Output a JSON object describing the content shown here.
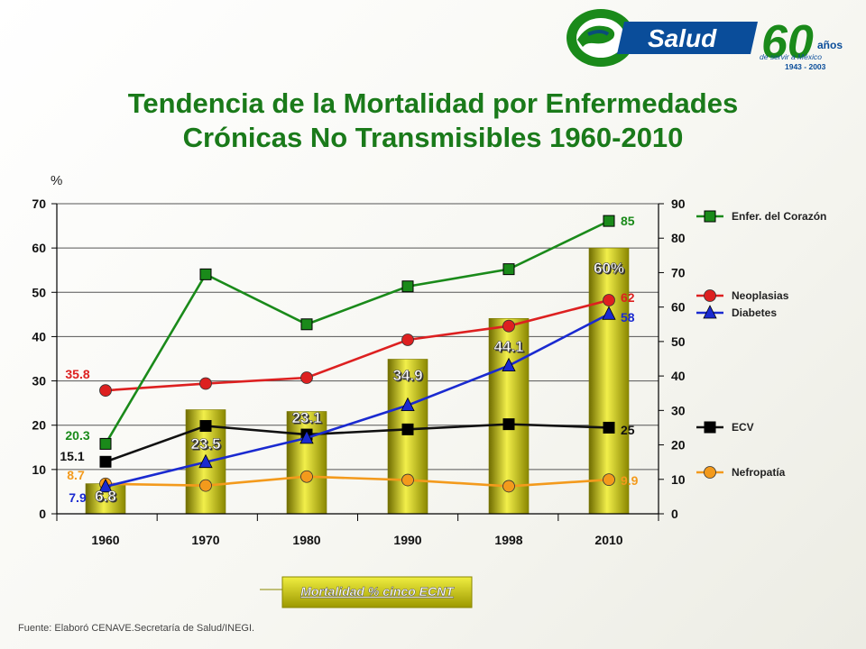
{
  "logo": {
    "brand": "Salud",
    "years": "60",
    "anos": "años",
    "tagline": "de servir a México",
    "range": "1943 - 2003"
  },
  "title": {
    "line1": "Tendencia  de la Mortalidad por Enfermedades",
    "line2": "Crónicas No Transmisibles 1960-2010"
  },
  "source": "Fuente: Elaboró CENAVE.Secretaría  de Salud/INEGI.",
  "colors": {
    "corazon": "#1a8a1a",
    "neoplasias": "#dd2020",
    "diabetes": "#1a2ad0",
    "ecv": "#111111",
    "nefropatia": "#f39a1c",
    "bars": "#c8c400"
  },
  "chart_data": {
    "type": "bar+line",
    "categories": [
      "1960",
      "1970",
      "1980",
      "1990",
      "1998",
      "2010"
    ],
    "left_axis": {
      "label": "%",
      "ylim": [
        0,
        70
      ],
      "ticks": [
        "0",
        "10",
        "20",
        "30",
        "40",
        "50",
        "60",
        "70"
      ]
    },
    "right_axis": {
      "ylim": [
        0,
        90
      ],
      "ticks": [
        "0",
        "10",
        "20",
        "30",
        "40",
        "50",
        "60",
        "70",
        "80",
        "90"
      ]
    },
    "bars": {
      "name": "Mortalidad % cinco ECNT",
      "axis": "left",
      "values": [
        6.8,
        23.5,
        23.1,
        34.9,
        44.1,
        60
      ],
      "labels": [
        "6.8",
        "23.5",
        "23.1",
        "34.9",
        "44.1",
        "60%"
      ]
    },
    "series": [
      {
        "name": "Enfer. del Corazón",
        "key": "corazon",
        "marker": "square",
        "axis": "right",
        "values": [
          20.3,
          69.5,
          55,
          66,
          71,
          85
        ],
        "start_label": "20.3",
        "end_label": "85"
      },
      {
        "name": "Neoplasias",
        "key": "neoplasias",
        "marker": "circle",
        "axis": "right",
        "values": [
          35.8,
          37.8,
          39.5,
          50.5,
          54.5,
          62
        ],
        "start_label": "35.8",
        "end_label": "62"
      },
      {
        "name": "Diabetes",
        "key": "diabetes",
        "marker": "triangle",
        "axis": "right",
        "values": [
          7.9,
          15,
          22,
          31.5,
          43,
          58
        ],
        "start_label": "7.9",
        "end_label": "58"
      },
      {
        "name": "ECV",
        "key": "ecv",
        "marker": "square",
        "axis": "right",
        "values": [
          15.1,
          25.5,
          23,
          24.5,
          26,
          25
        ],
        "start_label": "15.1",
        "end_label": "25"
      },
      {
        "name": "Nefropatía",
        "key": "nefropatia",
        "marker": "circle",
        "axis": "right",
        "values": [
          8.7,
          8.2,
          10.8,
          9.8,
          8,
          9.9
        ],
        "start_label": "8.7",
        "end_label": "9.9"
      }
    ],
    "grid": true,
    "legend_position": "right"
  }
}
